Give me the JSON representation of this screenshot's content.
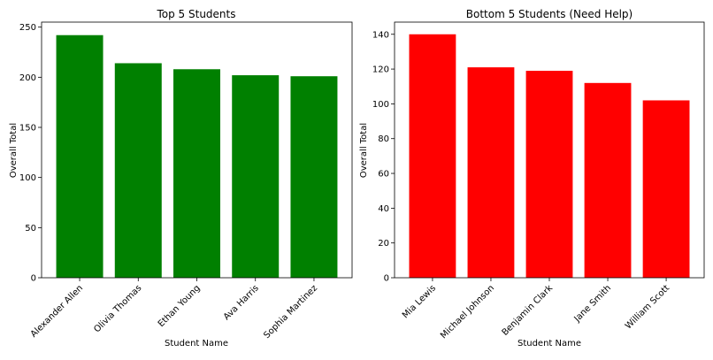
{
  "chart_data": [
    {
      "type": "bar",
      "title": "Top 5 Students",
      "xlabel": "Student Name",
      "ylabel": "Overall Total",
      "categories": [
        "Alexander Allen",
        "Olivia Thomas",
        "Ethan Young",
        "Ava Harris",
        "Sophia Martinez"
      ],
      "values": [
        242,
        214,
        208,
        202,
        201
      ],
      "ylim": [
        0,
        255
      ],
      "yticks": [
        0,
        50,
        100,
        150,
        200,
        250
      ],
      "color": "#008000",
      "grid": false
    },
    {
      "type": "bar",
      "title": "Bottom 5 Students (Need Help)",
      "xlabel": "Student Name",
      "ylabel": "Overall Total",
      "categories": [
        "Mia Lewis",
        "Michael Johnson",
        "Benjamin Clark",
        "Jane Smith",
        "William Scott"
      ],
      "values": [
        140,
        121,
        119,
        112,
        102
      ],
      "ylim": [
        0,
        147
      ],
      "yticks": [
        0,
        20,
        40,
        60,
        80,
        100,
        120,
        140
      ],
      "color": "#ff0000",
      "grid": false
    }
  ]
}
